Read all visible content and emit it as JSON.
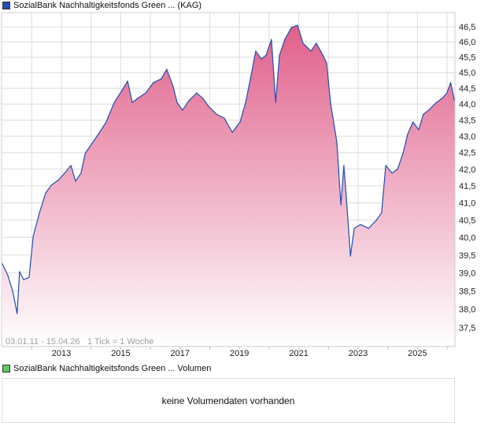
{
  "price_legend": {
    "label": "SozialBank Nachhaltigkeitsfonds Green ... (KAG)",
    "color": "#1f4fb5"
  },
  "volume_legend": {
    "label": "SozialBank Nachhaltigkeitsfonds Green ... Volumen",
    "color": "#5cc95c"
  },
  "volume_panel": {
    "message": "keine Volumendaten vorhanden"
  },
  "chart_data": {
    "type": "area",
    "title": "SozialBank Nachhaltigkeitsfonds Green ... (KAG)",
    "period_label": "03.01.11 - 15.04.26",
    "tick_label": "1 Tick = 1 Woche",
    "xlabel": "",
    "ylabel": "",
    "xlim": [
      2011.0,
      2026.29
    ],
    "ylim": [
      37.1,
      46.8
    ],
    "y_scale": "log",
    "grid": true,
    "x_ticks": [
      "2013",
      "2015",
      "2017",
      "2019",
      "2021",
      "2023",
      "2025"
    ],
    "x_tick_values": [
      2013,
      2015,
      2017,
      2019,
      2021,
      2023,
      2025
    ],
    "y_ticks": [
      "37,5",
      "38,0",
      "38,5",
      "39,0",
      "39,5",
      "40,0",
      "40,5",
      "41,0",
      "41,5",
      "42,0",
      "42,5",
      "43,0",
      "43,5",
      "44,0",
      "44,5",
      "45,0",
      "45,5",
      "46,0",
      "46,5"
    ],
    "y_tick_values": [
      37.5,
      38,
      38.5,
      39,
      39.5,
      40,
      40.5,
      41,
      41.5,
      42,
      42.5,
      43,
      43.5,
      44,
      44.5,
      45,
      45.5,
      46,
      46.5
    ],
    "line_color": "#1f4fb5",
    "fill_top_color": "#e0608a",
    "fill_bottom_color": "#ffffff",
    "x": [
      2011.01,
      2011.2,
      2011.36,
      2011.51,
      2011.59,
      2011.73,
      2011.91,
      2012.05,
      2012.26,
      2012.47,
      2012.66,
      2012.92,
      2013.11,
      2013.32,
      2013.48,
      2013.66,
      2013.8,
      2013.98,
      2014.25,
      2014.51,
      2014.78,
      2015.04,
      2015.23,
      2015.39,
      2015.57,
      2015.84,
      2016.1,
      2016.37,
      2016.55,
      2016.77,
      2016.9,
      2017.08,
      2017.3,
      2017.56,
      2017.77,
      2017.96,
      2018.23,
      2018.49,
      2018.76,
      2019.02,
      2019.21,
      2019.37,
      2019.55,
      2019.74,
      2019.9,
      2020.08,
      2020.22,
      2020.35,
      2020.53,
      2020.75,
      2020.96,
      2021.14,
      2021.41,
      2021.59,
      2021.81,
      2021.94,
      2022.07,
      2022.28,
      2022.42,
      2022.52,
      2022.6,
      2022.74,
      2022.87,
      2023.08,
      2023.35,
      2023.61,
      2023.79,
      2023.93,
      2024.14,
      2024.33,
      2024.51,
      2024.67,
      2024.85,
      2025.04,
      2025.2,
      2025.38,
      2025.64,
      2025.83,
      2025.99,
      2026.12,
      2026.25
    ],
    "values": [
      39.25,
      38.92,
      38.48,
      37.88,
      39.03,
      38.81,
      38.87,
      40.03,
      40.71,
      41.29,
      41.52,
      41.69,
      41.88,
      42.11,
      41.64,
      41.88,
      42.47,
      42.71,
      43.07,
      43.44,
      44.05,
      44.43,
      44.73,
      44.05,
      44.18,
      44.35,
      44.68,
      44.8,
      45.11,
      44.55,
      44.05,
      43.81,
      44.11,
      44.35,
      44.18,
      43.93,
      43.68,
      43.56,
      43.12,
      43.44,
      44.05,
      44.8,
      45.7,
      45.44,
      45.57,
      46.08,
      44.05,
      45.57,
      46.08,
      46.47,
      46.55,
      45.96,
      45.7,
      45.96,
      45.57,
      45.31,
      44.05,
      42.83,
      40.94,
      42.11,
      41.2,
      39.47,
      40.26,
      40.37,
      40.26,
      40.49,
      40.71,
      42.11,
      41.88,
      42.0,
      42.47,
      43.07,
      43.44,
      43.2,
      43.68,
      43.81,
      44.05,
      44.18,
      44.35,
      44.68,
      44.1
    ]
  }
}
